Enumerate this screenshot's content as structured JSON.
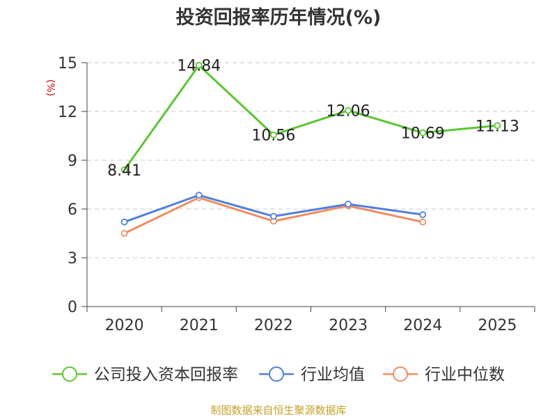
{
  "chart_data": {
    "type": "line",
    "title": "投资回报率历年情况(%)",
    "ylabel": "(%)",
    "xlabel": "",
    "categories": [
      "2020",
      "2021",
      "2022",
      "2023",
      "2024",
      "2025"
    ],
    "ylim": [
      0,
      15
    ],
    "yticks": [
      "0",
      "3",
      "6",
      "9",
      "12",
      "15"
    ],
    "grid": "horizontal dashed",
    "legend_position": "bottom",
    "series": [
      {
        "name": "公司投入资本回报率",
        "color": "#5ac72f",
        "values": [
          8.41,
          14.84,
          10.56,
          12.06,
          10.69,
          11.13
        ],
        "labels": [
          "8.41",
          "14.84",
          "10.56",
          "12.06",
          "10.69",
          "11.13"
        ]
      },
      {
        "name": "行业均值",
        "color": "#4f7fe0",
        "values": [
          5.2,
          6.85,
          5.55,
          6.3,
          5.65,
          null
        ]
      },
      {
        "name": "行业中位数",
        "color": "#f28c5c",
        "values": [
          4.5,
          6.7,
          5.25,
          6.2,
          5.2,
          null
        ]
      }
    ]
  },
  "source": "制图数据来自恒生聚源数据库"
}
